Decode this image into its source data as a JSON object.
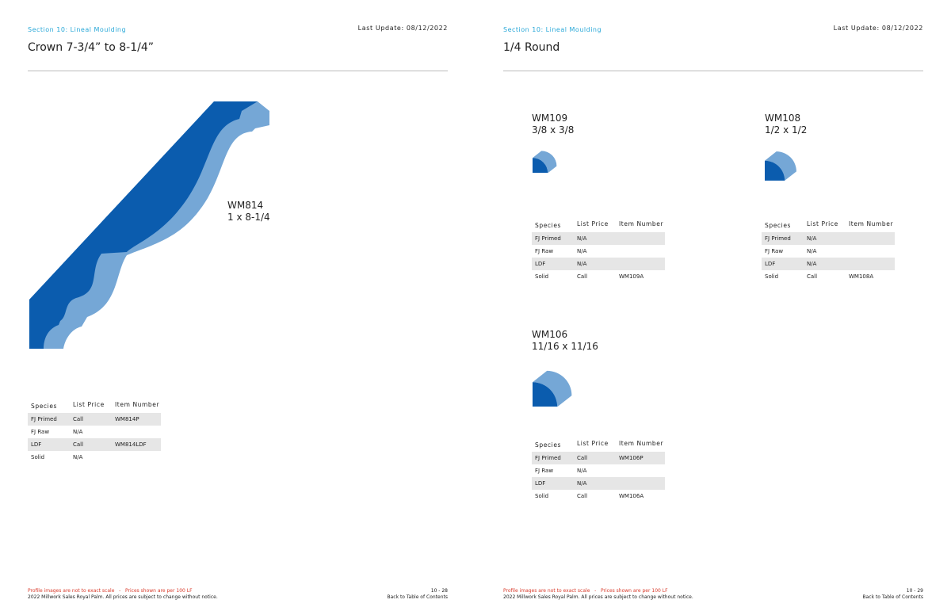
{
  "pages": [
    {
      "section": "Section 10: Lineal Moulding",
      "last_update": "Last Update: 08/12/2022",
      "title": "Crown 7-3/4” to 8-1/4”",
      "products": [
        {
          "code": "WM814",
          "size": "1 x 8-1/4",
          "table": {
            "header": [
              "Species",
              "List Price",
              "Item Number"
            ],
            "rows": [
              [
                "FJ Primed",
                "Call",
                "WM814P"
              ],
              [
                "FJ Raw",
                "N/A"
              ],
              [
                "LDF",
                "Call",
                "WM814LDF"
              ],
              [
                "Solid",
                "N/A"
              ]
            ]
          }
        }
      ],
      "footer": {
        "note": "Profile images are not to exact scale   -   Prices shown are per 100 LF",
        "copyright": "2022 Millwork Sales Royal Palm. All prices are subject to change without notice.",
        "page_number": "10 - 28",
        "back": "Back to Table of Contents"
      }
    },
    {
      "section": "Section 10: Lineal Moulding",
      "last_update": "Last Update: 08/12/2022",
      "title": "1/4 Round",
      "products": [
        {
          "code": "WM109",
          "size": "3/8 x 3/8",
          "table": {
            "header": [
              "Species",
              "List Price",
              "Item Number"
            ],
            "rows": [
              [
                "FJ Primed",
                "N/A"
              ],
              [
                "FJ Raw",
                "N/A"
              ],
              [
                "LDF",
                "N/A"
              ],
              [
                "Solid",
                "Call",
                "WM109A"
              ]
            ]
          }
        },
        {
          "code": "WM108",
          "size": "1/2 x 1/2",
          "table": {
            "header": [
              "Species",
              "List Price",
              "Item Number"
            ],
            "rows": [
              [
                "FJ Primed",
                "N/A"
              ],
              [
                "FJ Raw",
                "N/A"
              ],
              [
                "LDF",
                "N/A"
              ],
              [
                "Solid",
                "Call",
                "WM108A"
              ]
            ]
          }
        },
        {
          "code": "WM106",
          "size": "11/16 x 11/16",
          "table": {
            "header": [
              "Species",
              "List Price",
              "Item Number"
            ],
            "rows": [
              [
                "FJ Primed",
                "Call",
                "WM106P"
              ],
              [
                "FJ Raw",
                "N/A"
              ],
              [
                "LDF",
                "N/A"
              ],
              [
                "Solid",
                "Call",
                "WM106A"
              ]
            ]
          }
        }
      ],
      "footer": {
        "note": "Profile images are not to exact scale   -   Prices shown are per 100 LF",
        "copyright": "2022 Millwork Sales Royal Palm. All prices are subject to change without notice.",
        "page_number": "10 - 29",
        "back": "Back to Table of Contents"
      }
    }
  ]
}
